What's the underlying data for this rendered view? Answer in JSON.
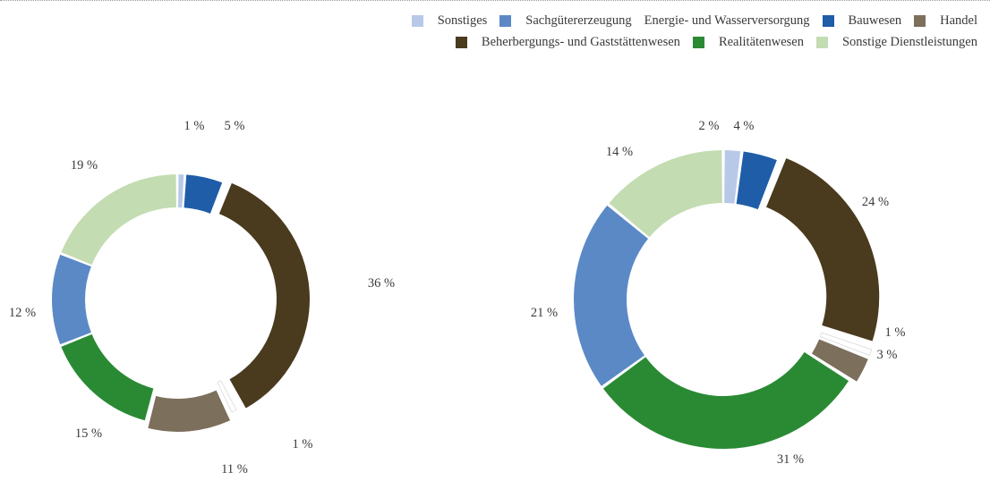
{
  "chart_data": [
    {
      "type": "pie",
      "hole": "donut",
      "categories": [
        "Sonstiges",
        "Bauwesen",
        "Beherbergungs- und Gaststättenwesen",
        "Energie- und Wasserversorgung",
        "Handel",
        "Realitätenwesen",
        "Sachgütererzeugung",
        "Sonstige Dienstleistungen"
      ],
      "values": [
        1,
        5,
        36,
        1,
        11,
        15,
        12,
        19
      ],
      "labels": [
        "1 %",
        "5 %",
        "36 %",
        "1 %",
        "11 %",
        "15 %",
        "12 %",
        "19 %"
      ]
    },
    {
      "type": "pie",
      "hole": "donut",
      "categories": [
        "Sonstiges",
        "Bauwesen",
        "Beherbergungs- und Gaststättenwesen",
        "Energie- und Wasserversorgung",
        "Handel",
        "Realitätenwesen",
        "Sachgütererzeugung",
        "Sonstige Dienstleistungen"
      ],
      "values": [
        2,
        4,
        24,
        1,
        3,
        31,
        21,
        14
      ],
      "labels": [
        "2 %",
        "4 %",
        "24 %",
        "1 %",
        "3 %",
        "31 %",
        "21 %",
        "14 %"
      ]
    }
  ],
  "legend": [
    {
      "label": "Sonstiges",
      "color": "#b8c9e8"
    },
    {
      "label": "Sachgütererzeugung",
      "color": "#5b89c6"
    },
    {
      "label": "Energie- und Wasserversorgung",
      "color": "#ffffff"
    },
    {
      "label": "Bauwesen",
      "color": "#1f5da8"
    },
    {
      "label": "Handel",
      "color": "#7c6f5c"
    },
    {
      "label": "Beherbergungs- und Gaststättenwesen",
      "color": "#4a3a1e"
    },
    {
      "label": "Realitätenwesen",
      "color": "#2a8a34"
    },
    {
      "label": "Sonstige Dienstleistungen",
      "color": "#c3dcb2"
    }
  ],
  "colors": {
    "Sonstiges": "#b8c9e8",
    "Bauwesen": "#1f5da8",
    "Beherbergungs- und Gaststättenwesen": "#4a3a1e",
    "Energie- und Wasserversorgung": "#ffffff",
    "Handel": "#7c6f5c",
    "Realitätenwesen": "#2a8a34",
    "Sachgütererzeugung": "#5b89c6",
    "Sonstige Dienstleistungen": "#c3dcb2"
  }
}
